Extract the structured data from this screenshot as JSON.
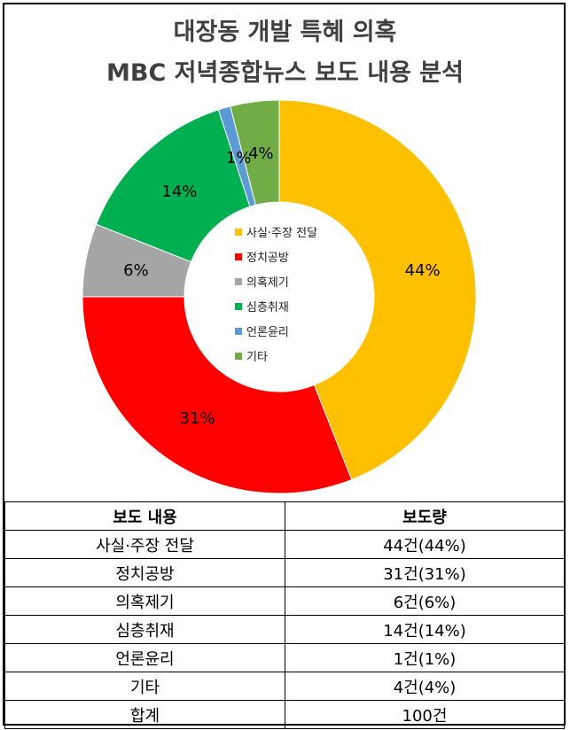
{
  "title": {
    "line1": "대장동 개발 특혜 의혹",
    "line2": "MBC 저녁종합뉴스 보도 내용 분석"
  },
  "chart_data": {
    "type": "pie",
    "title": "대장동 개발 특혜 의혹 MBC 저녁종합뉴스 보도 내용 분석",
    "legend_position": "center",
    "categories": [
      "사실·주장 전달",
      "정치공방",
      "의혹제기",
      "심층취재",
      "언론윤리",
      "기타"
    ],
    "values": [
      44,
      31,
      6,
      14,
      1,
      4
    ],
    "data_labels": [
      "44%",
      "31%",
      "6%",
      "14%",
      "1%",
      "4%"
    ],
    "colors": [
      "#FFC000",
      "#FF0000",
      "#A5A5A5",
      "#00B050",
      "#5B9BD5",
      "#70AD47"
    ]
  },
  "table": {
    "headers": [
      "보도 내용",
      "보도량"
    ],
    "rows": [
      [
        "사실·주장 전달",
        "44건(44%)"
      ],
      [
        "정치공방",
        "31건(31%)"
      ],
      [
        "의혹제기",
        "6건(6%)"
      ],
      [
        "심층취재",
        "14건(14%)"
      ],
      [
        "언론윤리",
        "1건(1%)"
      ],
      [
        "기타",
        "4건(4%)"
      ],
      [
        "합계",
        "100건"
      ]
    ]
  }
}
